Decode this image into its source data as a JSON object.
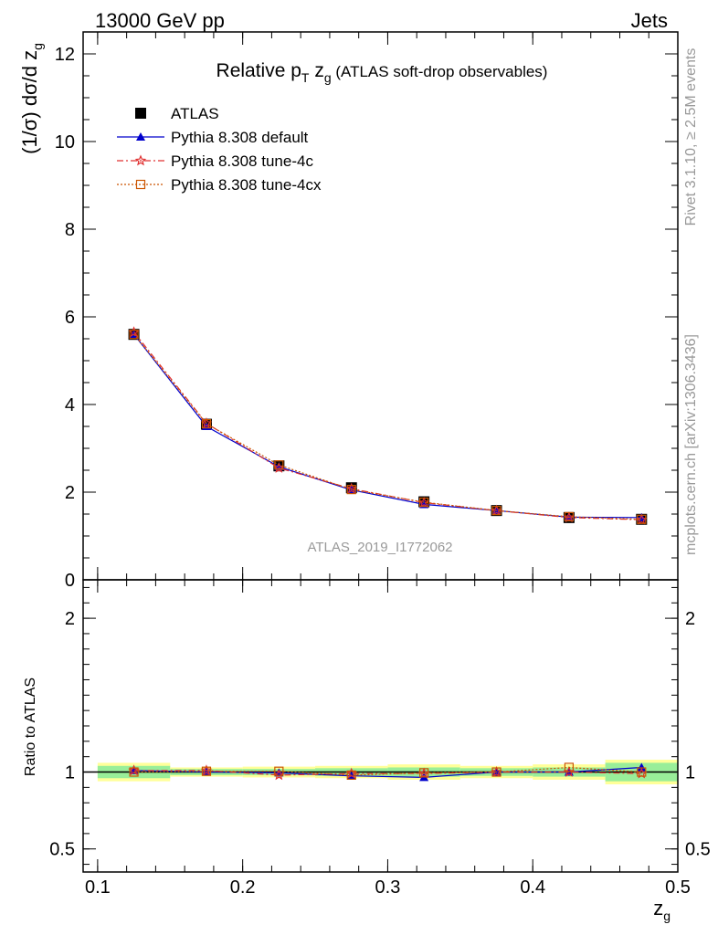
{
  "header": {
    "left": "13000 GeV pp",
    "right": "Jets",
    "title_main": "Relative p",
    "title_sub1": "T",
    "title_mid": " z",
    "title_sub2": "g",
    "title_rest": " (ATLAS soft-drop observables)"
  },
  "side_labels": {
    "rivet": "Rivet 3.1.10, ≥ 2.5M events",
    "mcplots": "mcplots.cern.ch [arXiv:1306.3436]"
  },
  "watermark": "ATLAS_2019_I1772062",
  "ylabel_main": {
    "pre": "(1/σ) dσ/d z",
    "sub": "g"
  },
  "ylabel_ratio": "Ratio to ATLAS",
  "xlabel": {
    "main": "z",
    "sub": "g"
  },
  "legend": [
    {
      "label": "ATLAS",
      "color": "#000000",
      "marker": "square"
    },
    {
      "label": "Pythia 8.308 default",
      "color": "#0000cc",
      "marker": "triangle"
    },
    {
      "label": "Pythia 8.308 tune-4c",
      "color": "#e03030",
      "marker": "star"
    },
    {
      "label": "Pythia 8.308 tune-4cx",
      "color": "#cc5500",
      "marker": "open-square"
    }
  ],
  "chart_data": {
    "type": "line",
    "x": [
      0.125,
      0.175,
      0.225,
      0.275,
      0.325,
      0.375,
      0.425,
      0.475
    ],
    "xlim": [
      0.09,
      0.5
    ],
    "xticks": [
      "0.1",
      "0.2",
      "0.3",
      "0.4",
      "0.5"
    ],
    "main": {
      "ylim": [
        0,
        12.5
      ],
      "yticks": [
        "0",
        "2",
        "4",
        "6",
        "8",
        "10",
        "12"
      ],
      "series": [
        {
          "name": "ATLAS",
          "values": [
            5.6,
            3.55,
            2.6,
            2.1,
            1.78,
            1.58,
            1.42,
            1.38
          ]
        },
        {
          "name": "Pythia 8.308 default",
          "values": [
            5.6,
            3.5,
            2.58,
            2.05,
            1.72,
            1.58,
            1.43,
            1.42
          ]
        },
        {
          "name": "Pythia 8.308 tune-4c",
          "values": [
            5.65,
            3.57,
            2.55,
            2.08,
            1.76,
            1.58,
            1.42,
            1.37
          ]
        },
        {
          "name": "Pythia 8.308 tune-4cx",
          "values": [
            5.6,
            3.56,
            2.62,
            2.06,
            1.77,
            1.58,
            1.44,
            1.38
          ]
        }
      ]
    },
    "ratio": {
      "ylim": [
        0.35,
        2.25
      ],
      "yticks": [
        "0.5",
        "1",
        "2"
      ],
      "series": [
        {
          "name": "Pythia 8.308 default",
          "values": [
            1.01,
            1.0,
            0.995,
            0.975,
            0.965,
            1.0,
            1.0,
            1.03
          ]
        },
        {
          "name": "Pythia 8.308 tune-4c",
          "values": [
            1.01,
            1.01,
            0.98,
            0.99,
            0.99,
            1.0,
            1.0,
            0.99
          ]
        },
        {
          "name": "Pythia 8.308 tune-4cx",
          "values": [
            1.0,
            1.005,
            1.005,
            0.98,
            0.995,
            1.0,
            1.03,
            1.0
          ]
        }
      ],
      "band_green": [
        [
          0.96,
          1.04
        ],
        [
          0.98,
          1.02
        ],
        [
          0.98,
          1.02
        ],
        [
          0.975,
          1.025
        ],
        [
          0.97,
          1.03
        ],
        [
          0.975,
          1.025
        ],
        [
          0.97,
          1.03
        ],
        [
          0.94,
          1.06
        ]
      ],
      "band_yellow": [
        [
          0.94,
          1.06
        ],
        [
          0.97,
          1.03
        ],
        [
          0.965,
          1.035
        ],
        [
          0.96,
          1.04
        ],
        [
          0.95,
          1.05
        ],
        [
          0.96,
          1.04
        ],
        [
          0.95,
          1.05
        ],
        [
          0.92,
          1.08
        ]
      ]
    }
  }
}
